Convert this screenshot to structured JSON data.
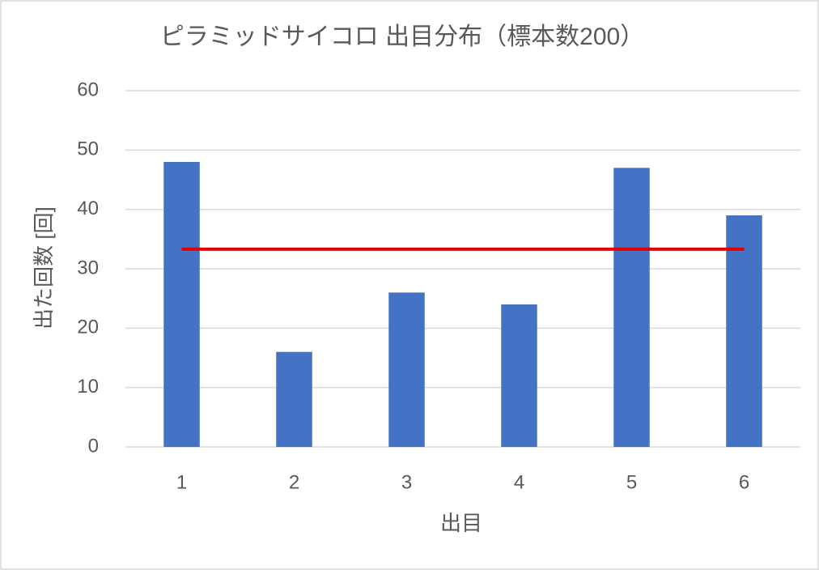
{
  "chart_data": {
    "type": "bar",
    "title": "ピラミッドサイコロ 出目分布（標本数200）",
    "x_label": "出目",
    "y_label": "出た回数 [回]",
    "categories": [
      "1",
      "2",
      "3",
      "4",
      "5",
      "6"
    ],
    "series": [
      {
        "type": "bar",
        "color": "#4472c4",
        "values": [
          48,
          16,
          26,
          24,
          47,
          39
        ]
      },
      {
        "type": "line",
        "color": "#e00000",
        "values": [
          33.3,
          33.3,
          33.3,
          33.3,
          33.3,
          33.3
        ]
      }
    ],
    "ylim": [
      0,
      60
    ],
    "yticks": [
      0,
      10,
      20,
      30,
      40,
      50,
      60
    ],
    "grid": true
  }
}
